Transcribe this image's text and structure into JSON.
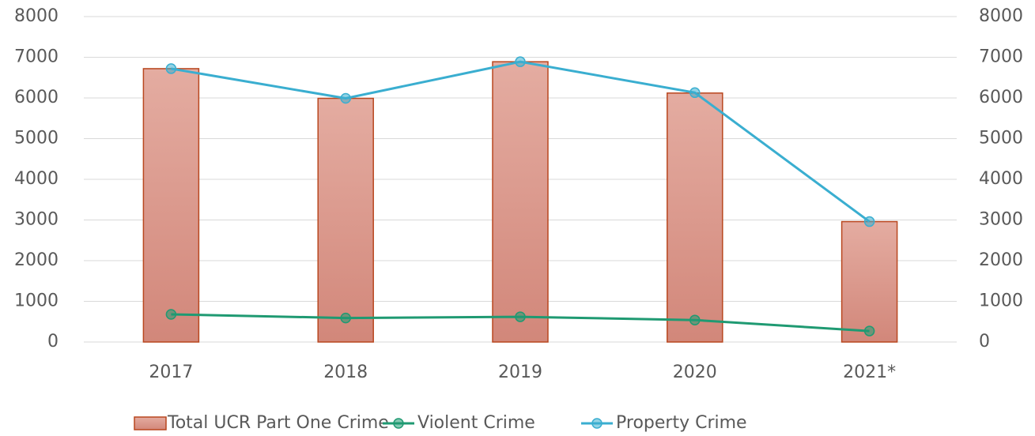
{
  "chart_data": {
    "type": "bar",
    "categories": [
      "2017",
      "2018",
      "2019",
      "2020",
      "2021*"
    ],
    "series": [
      {
        "name": "Total UCR Part One Crime",
        "type": "bar",
        "color": "#d9907f",
        "values": [
          6720,
          5990,
          6890,
          6120,
          2960
        ]
      },
      {
        "name": "Violent Crime",
        "type": "line",
        "axis": "y2",
        "color": "#1f9a72",
        "values": [
          680,
          590,
          620,
          540,
          270
        ]
      },
      {
        "name": "Property Crime",
        "type": "line",
        "axis": "y2",
        "color": "#3aaed0",
        "values": [
          6720,
          5990,
          6890,
          6130,
          2960
        ]
      }
    ],
    "ylim": [
      0,
      8000
    ],
    "yticks": [
      0,
      1000,
      2000,
      3000,
      4000,
      5000,
      6000,
      7000,
      8000
    ],
    "y2lim": [
      0,
      8000
    ],
    "y2ticks": [
      0,
      1000,
      2000,
      3000,
      4000,
      5000,
      6000,
      7000,
      8000
    ],
    "grid": true,
    "legend": "bottom"
  }
}
